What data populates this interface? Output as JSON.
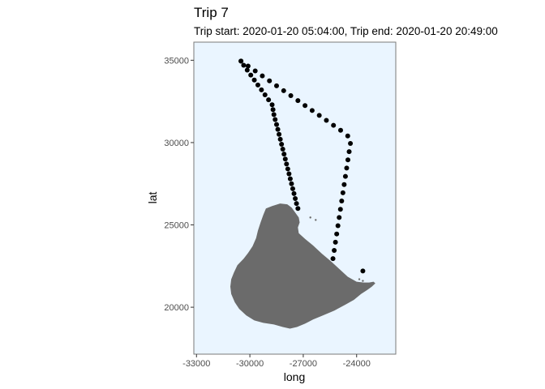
{
  "chart_data": {
    "type": "scatter",
    "title": "Trip 7",
    "subtitle": "Trip start: 2020-01-20 05:04:00, Trip end: 2020-01-20 20:49:00",
    "xlabel": "long",
    "ylabel": "lat",
    "xlim": [
      -33150,
      -21800
    ],
    "ylim": [
      17150,
      36100
    ],
    "x_ticks": [
      {
        "value": -33000,
        "label": "-33000"
      },
      {
        "value": -30000,
        "label": "-30000"
      },
      {
        "value": -27000,
        "label": "-27000"
      },
      {
        "value": -24000,
        "label": "-24000"
      }
    ],
    "y_ticks": [
      {
        "value": 20000,
        "label": "20000"
      },
      {
        "value": 25000,
        "label": "25000"
      },
      {
        "value": 30000,
        "label": "30000"
      },
      {
        "value": 35000,
        "label": "35000"
      }
    ],
    "grid": false,
    "panel_background": "#eaf5ff",
    "land_color": "#6b6b6b",
    "point_color": "#000000",
    "island_outline": [
      [
        -29100,
        26000
      ],
      [
        -28750,
        26150
      ],
      [
        -28300,
        26300
      ],
      [
        -27900,
        26250
      ],
      [
        -27650,
        26050
      ],
      [
        -27450,
        25750
      ],
      [
        -27250,
        25450
      ],
      [
        -27200,
        25150
      ],
      [
        -27300,
        24850
      ],
      [
        -27250,
        24500
      ],
      [
        -26900,
        24150
      ],
      [
        -26450,
        23750
      ],
      [
        -25950,
        23250
      ],
      [
        -25450,
        22800
      ],
      [
        -24950,
        22300
      ],
      [
        -24500,
        21850
      ],
      [
        -24000,
        21550
      ],
      [
        -23600,
        21500
      ],
      [
        -23300,
        21500
      ],
      [
        -23050,
        21550
      ],
      [
        -22950,
        21450
      ],
      [
        -23150,
        21250
      ],
      [
        -23400,
        21050
      ],
      [
        -23750,
        20800
      ],
      [
        -24150,
        20450
      ],
      [
        -24650,
        20150
      ],
      [
        -25250,
        19800
      ],
      [
        -25900,
        19500
      ],
      [
        -26450,
        19250
      ],
      [
        -26900,
        19000
      ],
      [
        -27350,
        18800
      ],
      [
        -27750,
        18700
      ],
      [
        -28150,
        18800
      ],
      [
        -28650,
        18950
      ],
      [
        -29250,
        19050
      ],
      [
        -29750,
        19200
      ],
      [
        -30200,
        19500
      ],
      [
        -30600,
        19900
      ],
      [
        -30850,
        20300
      ],
      [
        -31050,
        20800
      ],
      [
        -31100,
        21250
      ],
      [
        -31050,
        21700
      ],
      [
        -30900,
        22100
      ],
      [
        -30700,
        22550
      ],
      [
        -30350,
        22950
      ],
      [
        -30100,
        23300
      ],
      [
        -29850,
        23700
      ],
      [
        -29650,
        24200
      ],
      [
        -29550,
        24650
      ],
      [
        -29400,
        25150
      ],
      [
        -29250,
        25600
      ]
    ],
    "small_specks": [
      {
        "x": -26600,
        "y": 25450
      },
      {
        "x": -26300,
        "y": 25300
      },
      {
        "x": -23850,
        "y": 21700
      },
      {
        "x": -23650,
        "y": 21600
      }
    ],
    "series": [
      {
        "points": [
          [
            -30500,
            34950
          ],
          [
            -30350,
            34700
          ],
          [
            -30150,
            34400
          ],
          [
            -29950,
            34100
          ],
          [
            -29750,
            33800
          ],
          [
            -29550,
            33500
          ],
          [
            -29350,
            33200
          ],
          [
            -29150,
            32900
          ],
          [
            -28950,
            32600
          ],
          [
            -28750,
            32300
          ],
          [
            -28700,
            32000
          ],
          [
            -28650,
            31700
          ],
          [
            -28580,
            31400
          ],
          [
            -28500,
            31100
          ],
          [
            -28430,
            30800
          ],
          [
            -28360,
            30500
          ],
          [
            -28290,
            30200
          ],
          [
            -28220,
            29900
          ],
          [
            -28150,
            29600
          ],
          [
            -28080,
            29300
          ],
          [
            -28010,
            29000
          ],
          [
            -27940,
            28700
          ],
          [
            -27870,
            28400
          ],
          [
            -27800,
            28100
          ],
          [
            -27730,
            27800
          ],
          [
            -27660,
            27500
          ],
          [
            -27590,
            27200
          ],
          [
            -27520,
            26900
          ],
          [
            -27450,
            26600
          ],
          [
            -27380,
            26300
          ],
          [
            -27300,
            26000
          ],
          [
            -30500,
            34950
          ],
          [
            -30100,
            34650
          ],
          [
            -29700,
            34350
          ],
          [
            -29300,
            34050
          ],
          [
            -28900,
            33750
          ],
          [
            -28500,
            33450
          ],
          [
            -28100,
            33150
          ],
          [
            -27700,
            32850
          ],
          [
            -27300,
            32550
          ],
          [
            -26900,
            32250
          ],
          [
            -26500,
            31950
          ],
          [
            -26100,
            31650
          ],
          [
            -25700,
            31350
          ],
          [
            -25300,
            31050
          ],
          [
            -24900,
            30750
          ],
          [
            -24500,
            30400
          ],
          [
            -24350,
            29950
          ],
          [
            -24420,
            29450
          ],
          [
            -24490,
            28950
          ],
          [
            -24560,
            28450
          ],
          [
            -24630,
            27950
          ],
          [
            -24700,
            27450
          ],
          [
            -24770,
            26950
          ],
          [
            -24840,
            26450
          ],
          [
            -24910,
            25950
          ],
          [
            -24980,
            25450
          ],
          [
            -25050,
            24950
          ],
          [
            -25120,
            24450
          ],
          [
            -25190,
            23950
          ],
          [
            -25260,
            23450
          ],
          [
            -25330,
            22950
          ],
          [
            -23650,
            22200
          ]
        ]
      }
    ]
  }
}
